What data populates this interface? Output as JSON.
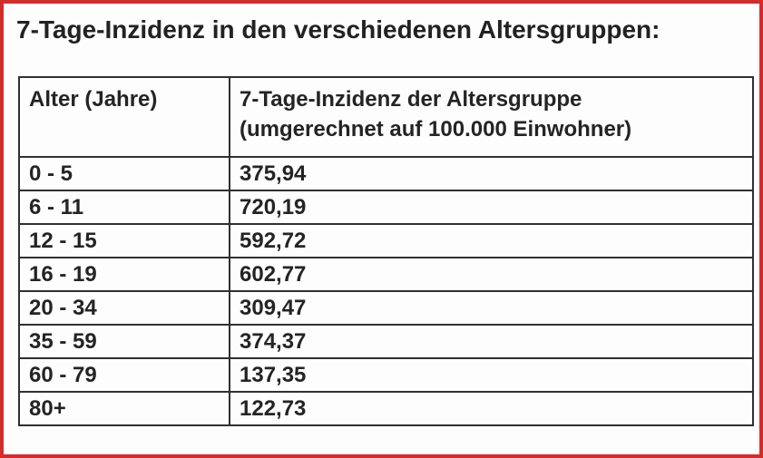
{
  "page": {
    "title": "7-Tage-Inzidenz in den verschiedenen Altersgruppen:"
  },
  "table": {
    "col1_header": "Alter (Jahre)",
    "col2_header_line1": "7-Tage-Inzidenz der Altersgruppe",
    "col2_header_line2": "(umgerechnet auf 100.000 Einwohner)",
    "rows": [
      {
        "age": "0 - 5",
        "value": "375,94"
      },
      {
        "age": "6 - 11",
        "value": "720,19"
      },
      {
        "age": "12 - 15",
        "value": "592,72"
      },
      {
        "age": "16 - 19",
        "value": "602,77"
      },
      {
        "age": "20 - 34",
        "value": "309,47"
      },
      {
        "age": "35 - 59",
        "value": "374,37"
      },
      {
        "age": "60 - 79",
        "value": "137,35"
      },
      {
        "age": "80+",
        "value": "122,73"
      }
    ]
  },
  "chart_data": {
    "type": "table",
    "title": "7-Tage-Inzidenz in den verschiedenen Altersgruppen",
    "columns": [
      "Alter (Jahre)",
      "7-Tage-Inzidenz der Altersgruppe (umgerechnet auf 100.000 Einwohner)"
    ],
    "categories": [
      "0 - 5",
      "6 - 11",
      "12 - 15",
      "16 - 19",
      "20 - 34",
      "35 - 59",
      "60 - 79",
      "80+"
    ],
    "values": [
      375.94,
      720.19,
      592.72,
      602.77,
      309.47,
      374.37,
      137.35,
      122.73
    ]
  },
  "colors": {
    "frame_border": "#d22c2c",
    "table_border": "#303030",
    "text": "#242424",
    "background": "#fdfdfd"
  }
}
